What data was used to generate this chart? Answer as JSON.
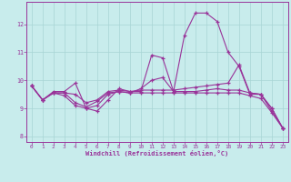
{
  "xlabel": "Windchill (Refroidissement éolien,°C)",
  "bg_color": "#c8ecec",
  "grid_color": "#a8d4d4",
  "line_color": "#993399",
  "x_values": [
    0,
    1,
    2,
    3,
    4,
    5,
    6,
    7,
    8,
    9,
    10,
    11,
    12,
    13,
    14,
    15,
    16,
    17,
    18,
    19,
    20,
    21,
    22,
    23
  ],
  "line1": [
    9.8,
    9.3,
    9.6,
    9.6,
    9.9,
    9.0,
    8.9,
    9.3,
    9.7,
    9.6,
    9.6,
    10.9,
    10.8,
    9.6,
    11.6,
    12.4,
    12.4,
    12.1,
    11.0,
    10.5,
    9.5,
    9.5,
    9.0,
    8.3
  ],
  "line2": [
    9.8,
    9.3,
    9.55,
    9.45,
    9.1,
    9.0,
    9.1,
    9.5,
    9.6,
    9.55,
    9.7,
    10.0,
    10.1,
    9.6,
    9.6,
    9.6,
    9.65,
    9.7,
    9.65,
    9.65,
    9.55,
    9.5,
    9.0,
    8.3
  ],
  "line3": [
    9.8,
    9.3,
    9.55,
    9.55,
    9.5,
    9.2,
    9.3,
    9.6,
    9.65,
    9.6,
    9.65,
    9.65,
    9.65,
    9.65,
    9.7,
    9.75,
    9.8,
    9.85,
    9.9,
    10.55,
    9.55,
    9.5,
    8.9,
    8.3
  ],
  "line4": [
    9.8,
    9.3,
    9.55,
    9.55,
    9.2,
    9.05,
    9.25,
    9.55,
    9.6,
    9.55,
    9.55,
    9.55,
    9.55,
    9.55,
    9.55,
    9.55,
    9.55,
    9.55,
    9.55,
    9.55,
    9.45,
    9.35,
    8.85,
    8.3
  ],
  "xlim": [
    -0.5,
    23.5
  ],
  "ylim": [
    7.8,
    12.8
  ],
  "yticks": [
    8,
    9,
    10,
    11,
    12
  ],
  "xticks": [
    0,
    1,
    2,
    3,
    4,
    5,
    6,
    7,
    8,
    9,
    10,
    11,
    12,
    13,
    14,
    15,
    16,
    17,
    18,
    19,
    20,
    21,
    22,
    23
  ]
}
